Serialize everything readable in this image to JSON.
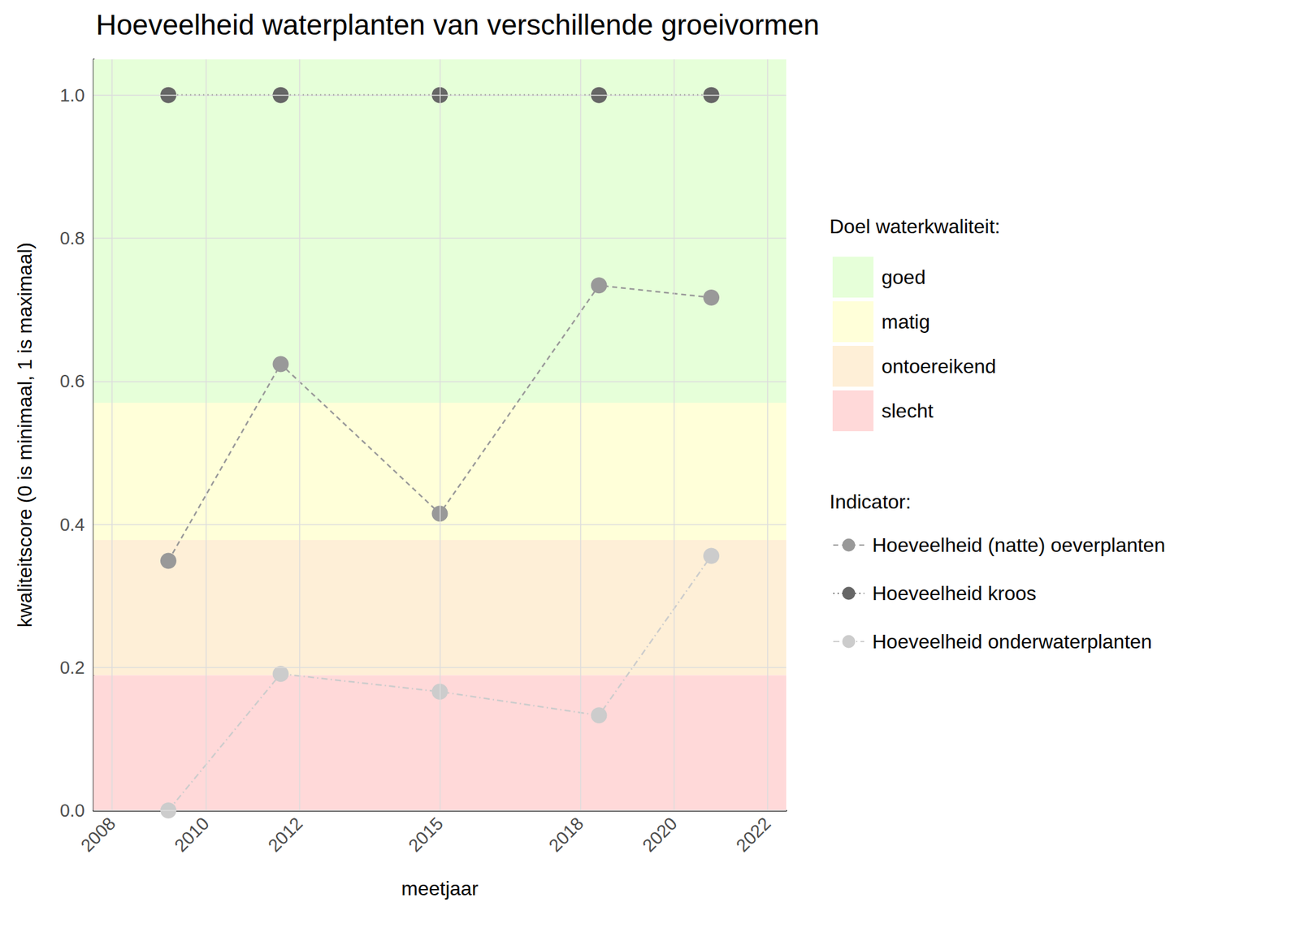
{
  "chart_data": {
    "type": "line",
    "title": "Hoeveelheid waterplanten van verschillende groeivormen",
    "x_label": "meetjaar",
    "y_label": "kwaliteitscore (0 is minimaal, 1 is maximaal)",
    "x": [
      2009.2,
      2011.6,
      2015,
      2018.4,
      2020.8
    ],
    "series": [
      {
        "name": "Hoeveelheid (natte) oeverplanten",
        "color": "#999999",
        "line_style": "dashed",
        "marker": "circle",
        "values": [
          0.349,
          0.624,
          0.415,
          0.734,
          0.717
        ]
      },
      {
        "name": "Hoeveelheid kroos",
        "color": "#666666",
        "line_style": "dotted",
        "marker": "circle",
        "values": [
          1.0,
          1.0,
          1.0,
          1.0,
          1.0
        ]
      },
      {
        "name": "Hoeveelheid onderwaterplanten",
        "color": "#cccccc",
        "line_style": "dashdot",
        "marker": "circle",
        "values": [
          0.0,
          0.191,
          0.166,
          0.133,
          0.356
        ]
      }
    ],
    "legend_title": "Indicator:",
    "bands": {
      "title": "Doel waterkwaliteit:",
      "items": [
        {
          "name": "goed",
          "from": 0.57,
          "to": 1.05,
          "color": "#e6ffd9"
        },
        {
          "name": "matig",
          "from": 0.378,
          "to": 0.57,
          "color": "#ffffd9"
        },
        {
          "name": "ontoereikend",
          "from": 0.189,
          "to": 0.378,
          "color": "#feefd7"
        },
        {
          "name": "slecht",
          "from": 0.0,
          "to": 0.189,
          "color": "#ffd9d9"
        }
      ]
    },
    "xlim": [
      2007.6,
      2022.4
    ],
    "xticks": [
      2008,
      2010,
      2012,
      2015,
      2018,
      2020,
      2022
    ],
    "ylim": [
      0,
      1.05
    ],
    "yticks": [
      {
        "value": 0,
        "label": "0.0"
      },
      0.2,
      0.4,
      0.6,
      0.8,
      {
        "value": 1,
        "label": "1.0"
      }
    ],
    "grid": true,
    "legend": "right"
  }
}
